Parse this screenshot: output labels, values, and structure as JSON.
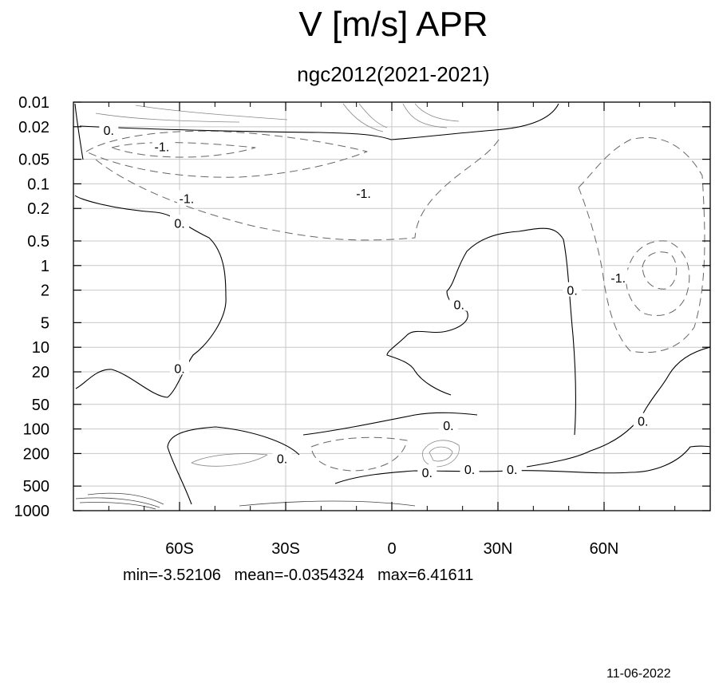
{
  "title": "V [m/s] APR",
  "subtitle": "ngc2012(2021-2021)",
  "stats": {
    "min": "min=-3.52106",
    "mean": "mean=-0.0354324",
    "max": "max=6.41611"
  },
  "date": "11-06-2022",
  "chart_data": {
    "type": "contour",
    "title": "V [m/s] APR",
    "subtitle": "ngc2012(2021-2021)",
    "x_axis": {
      "range": [
        -90,
        90
      ],
      "ticks": [
        {
          "value": -60,
          "label": "60S"
        },
        {
          "value": -30,
          "label": "30S"
        },
        {
          "value": 0,
          "label": "0"
        },
        {
          "value": 30,
          "label": "30N"
        },
        {
          "value": 60,
          "label": "60N"
        }
      ],
      "minor_ticks": [
        -80,
        -70,
        -50,
        -40,
        -20,
        -10,
        10,
        20,
        40,
        50,
        70,
        80
      ]
    },
    "y_axis": {
      "scale": "log",
      "reversed": true,
      "range": [
        1000,
        0.01
      ],
      "ticks": [
        {
          "value": 0.01,
          "label": "0.01"
        },
        {
          "value": 0.02,
          "label": "0.02"
        },
        {
          "value": 0.05,
          "label": "0.05"
        },
        {
          "value": 0.1,
          "label": "0.1"
        },
        {
          "value": 0.2,
          "label": "0.2"
        },
        {
          "value": 0.5,
          "label": "0.5"
        },
        {
          "value": 1,
          "label": "1"
        },
        {
          "value": 2,
          "label": "2"
        },
        {
          "value": 5,
          "label": "5"
        },
        {
          "value": 10,
          "label": "10"
        },
        {
          "value": 20,
          "label": "20"
        },
        {
          "value": 50,
          "label": "50"
        },
        {
          "value": 100,
          "label": "100"
        },
        {
          "value": 200,
          "label": "200"
        },
        {
          "value": 500,
          "label": "500"
        },
        {
          "value": 1000,
          "label": "1000"
        }
      ]
    },
    "grid": true,
    "contour_labels": [
      {
        "text": "0.",
        "lat": -80,
        "p": 0.022
      },
      {
        "text": "-1.",
        "lat": -65,
        "p": 0.035
      },
      {
        "text": "-1.",
        "lat": -58,
        "p": 0.15
      },
      {
        "text": "-1.",
        "lat": -8,
        "p": 0.13
      },
      {
        "text": "0.",
        "lat": -60,
        "p": 0.3
      },
      {
        "text": "0.",
        "lat": -60,
        "p": 18
      },
      {
        "text": "0.",
        "lat": 19,
        "p": 3
      },
      {
        "text": "0.",
        "lat": 51,
        "p": 2
      },
      {
        "text": "-1.",
        "lat": 64,
        "p": 1.4
      },
      {
        "text": "0.",
        "lat": 71,
        "p": 80
      },
      {
        "text": "0.",
        "lat": 16,
        "p": 90
      },
      {
        "text": "0.",
        "lat": -31,
        "p": 230
      },
      {
        "text": "0.",
        "lat": 10,
        "p": 340
      },
      {
        "text": "0.",
        "lat": 22,
        "p": 310
      },
      {
        "text": "0.",
        "lat": 34,
        "p": 310
      }
    ],
    "summary": {
      "min": -3.52106,
      "mean": -0.0354324,
      "max": 6.41611
    }
  }
}
